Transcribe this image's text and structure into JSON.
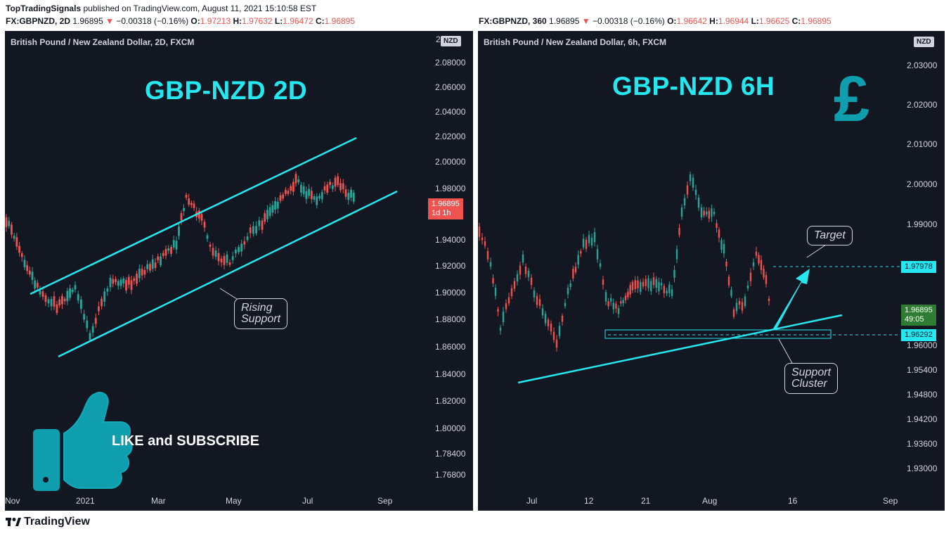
{
  "header": {
    "author": "TopTradingSignals",
    "published_text": "published on TradingView.com, August 11, 2021 15:10:58 EST"
  },
  "left_chart": {
    "symbol_line": "FX:GBPNZD, 2D",
    "last": "1.96895",
    "change": "−0.00318 (−0.16%)",
    "open_label": "O:",
    "open": "1.97213",
    "high_label": "H:",
    "high": "1.97632",
    "low_label": "L:",
    "low": "1.96472",
    "close_label": "C:",
    "close": "1.96895",
    "panel_title": "British Pound / New Zealand Dollar, 2D, FXCM",
    "big_title": "GBP-NZD 2D",
    "currency_badge": "NZD",
    "price_tag": "1.96895",
    "price_tag_timer": "1d 1h",
    "y_ticks": [
      "2.08000",
      "2.06000",
      "2.04000",
      "2.02000",
      "2.00000",
      "1.98000",
      "1.94000",
      "1.92000",
      "1.90000",
      "1.88000",
      "1.86000",
      "1.84000",
      "1.82000",
      "1.80000",
      "1.78400",
      "1.76800"
    ],
    "y_top_partial": "2",
    "x_ticks": [
      "Nov",
      "2021",
      "Mar",
      "May",
      "Jul",
      "Sep"
    ],
    "callout_line1": "Rising",
    "callout_line2": "Support",
    "like_text": "LIKE and SUBSCRIBE"
  },
  "right_chart": {
    "symbol_line": "FX:GBPNZD, 360",
    "last": "1.96895",
    "change": "−0.00318 (−0.16%)",
    "open_label": "O:",
    "open": "1.96642",
    "high_label": "H:",
    "high": "1.96944",
    "low_label": "L:",
    "low": "1.96625",
    "close_label": "C:",
    "close": "1.96895",
    "panel_title": "British Pound / New Zealand Dollar, 6h, FXCM",
    "big_title": "GBP-NZD 6H",
    "currency_badge": "NZD",
    "y_ticks": [
      "2.03000",
      "2.02000",
      "2.01000",
      "2.00000",
      "1.99000",
      "1.96000",
      "1.95400",
      "1.94800",
      "1.94200",
      "1.93600",
      "1.93000"
    ],
    "x_ticks": [
      "Jul",
      "12",
      "21",
      "Aug",
      "16",
      "Sep"
    ],
    "target_price": "1.97978",
    "current_price": "1.96895",
    "current_timer": "49:05",
    "support_price": "1.96292",
    "target_label": "Target",
    "support_line1": "Support",
    "support_line2": "Cluster"
  },
  "footer": {
    "brand": "TradingView"
  },
  "colors": {
    "background": "#131722",
    "accent": "#26e6f0",
    "up_candle": "#26a69a",
    "down_candle": "#ef5350",
    "current_price_right": "#2e7d32"
  }
}
